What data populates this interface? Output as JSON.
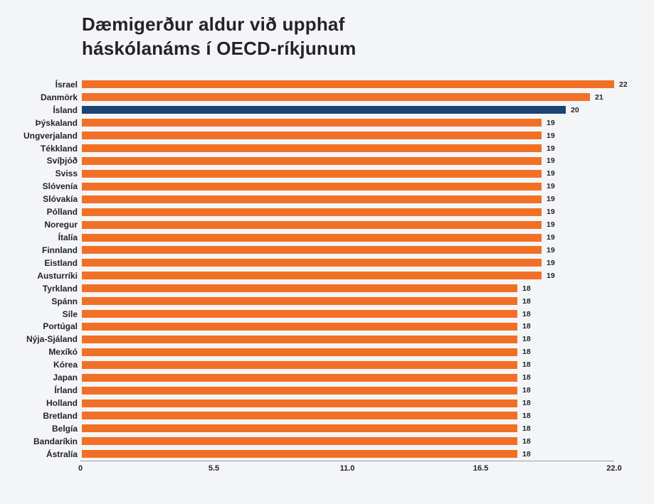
{
  "page": {
    "background_color": "#f4f5f6"
  },
  "chart_data": {
    "type": "bar",
    "orientation": "horizontal",
    "title": "Dæmigerður aldur við upphaf háskólanáms í OECD-ríkjunum",
    "title_lines": [
      "Dæmigerður aldur við upphaf",
      "háskólanáms í OECD-ríkjunum"
    ],
    "categories": [
      "Ísrael",
      "Danmörk",
      "Ísland",
      "Þýskaland",
      "Ungverjaland",
      "Tékkland",
      "Svíþjóð",
      "Sviss",
      "Slóvenía",
      "Slóvakía",
      "Pólland",
      "Noregur",
      "Ítalía",
      "Finnland",
      "Eistland",
      "Austurríki",
      "Tyrkland",
      "Spánn",
      "Síle",
      "Portúgal",
      "Nýja-Sjáland",
      "Mexíkó",
      "Kórea",
      "Japan",
      "Írland",
      "Holland",
      "Bretland",
      "Belgía",
      "Bandaríkin",
      "Ástralía"
    ],
    "values": [
      22,
      21,
      20,
      19,
      19,
      19,
      19,
      19,
      19,
      19,
      19,
      19,
      19,
      19,
      19,
      19,
      18,
      18,
      18,
      18,
      18,
      18,
      18,
      18,
      18,
      18,
      18,
      18,
      18,
      18
    ],
    "highlight_category": "Ísland",
    "value_labels_shown": true,
    "xlabel": "",
    "ylabel": "",
    "xlim": [
      0,
      22
    ],
    "xticks": [
      "0",
      "5.5",
      "11.0",
      "16.5",
      "22.0"
    ],
    "xtick_values": [
      0,
      5.5,
      11,
      16.5,
      22
    ],
    "grid": false,
    "legend": false,
    "colors": {
      "bar": "#f17026",
      "highlight": "#1b4373",
      "text": "#232329",
      "axis": "#9aa0a3",
      "background": "#f4f5f6"
    }
  }
}
